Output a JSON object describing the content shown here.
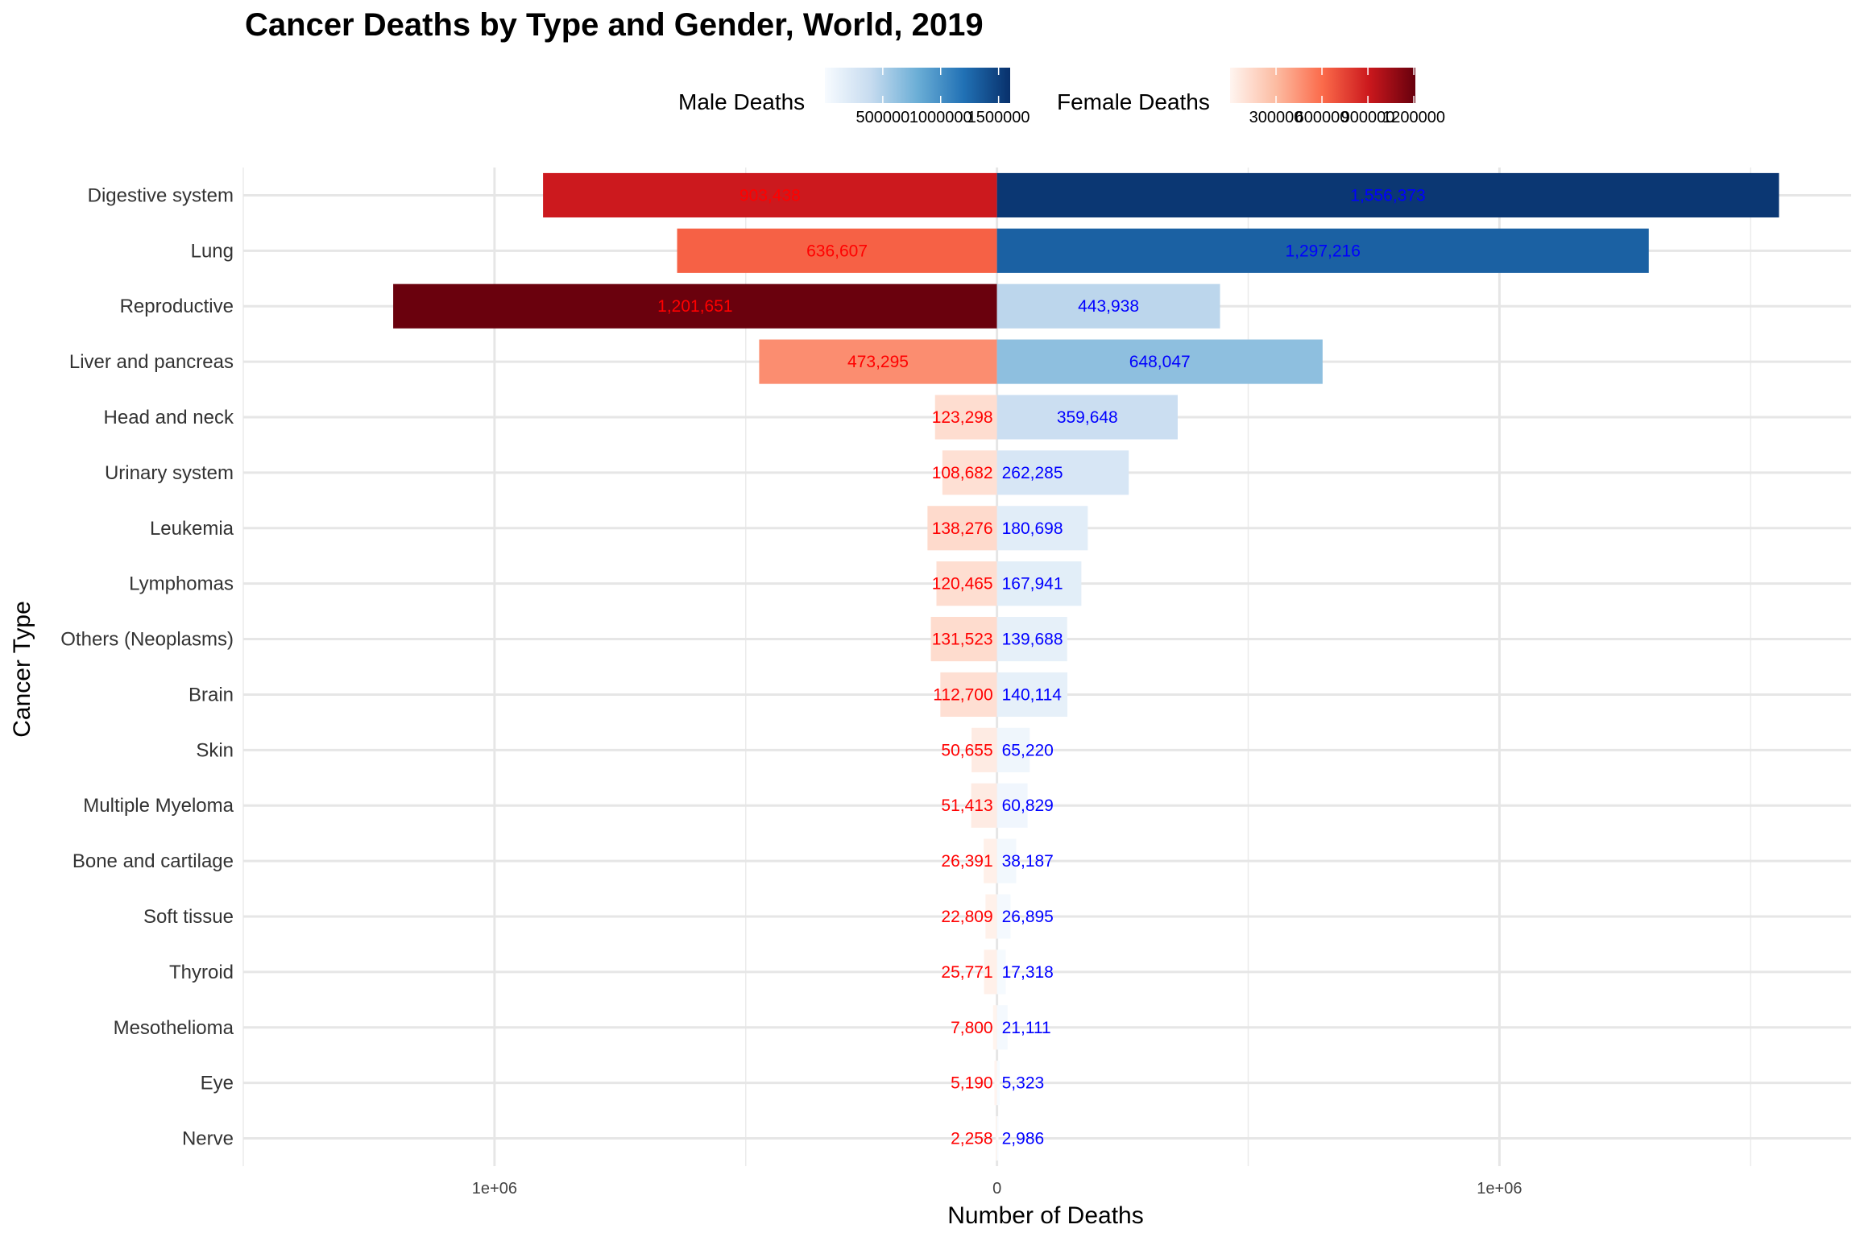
{
  "chart_data": {
    "type": "bar",
    "title": "Cancer Deaths by Type and Gender, World, 2019",
    "xlabel": "Number of Deaths",
    "ylabel": "Cancer Type",
    "xlim": [
      -1500000,
      1700000
    ],
    "x_ticks": [
      {
        "value": -1000000,
        "label": "1e+06"
      },
      {
        "value": 0,
        "label": "0"
      },
      {
        "value": 1000000,
        "label": "1e+06"
      }
    ],
    "categories": [
      "Digestive system",
      "Lung",
      "Reproductive",
      "Liver and pancreas",
      "Head and neck",
      "Urinary system",
      "Leukemia",
      "Lymphomas",
      "Others (Neoplasms)",
      "Brain",
      "Skin",
      "Multiple Myeloma",
      "Bone and cartilage",
      "Soft tissue",
      "Thyroid",
      "Mesothelioma",
      "Eye",
      "Nerve"
    ],
    "series": [
      {
        "name": "Female Deaths",
        "direction": "left",
        "label_color": "#ff0000",
        "values": [
          903438,
          636607,
          1201651,
          473295,
          123298,
          108682,
          138276,
          120465,
          131523,
          112700,
          50655,
          51413,
          26391,
          22809,
          25771,
          7800,
          5190,
          2258
        ],
        "labels": [
          "903,438",
          "636,607",
          "1,201,651",
          "473,295",
          "123,298",
          "108,682",
          "138,276",
          "120,465",
          "131,523",
          "112,700",
          "50,655",
          "51,413",
          "26,391",
          "22,809",
          "25,771",
          "7,800",
          "5,190",
          "2,258"
        ]
      },
      {
        "name": "Male Deaths",
        "direction": "right",
        "label_color": "#0000ff",
        "values": [
          1556373,
          1297216,
          443938,
          648047,
          359648,
          262285,
          180698,
          167941,
          139688,
          140114,
          65220,
          60829,
          38187,
          26895,
          17318,
          21111,
          5323,
          2986
        ],
        "labels": [
          "1,556,373",
          "1,297,216",
          "443,938",
          "648,047",
          "359,648",
          "262,285",
          "180,698",
          "167,941",
          "139,688",
          "140,114",
          "65,220",
          "60,829",
          "38,187",
          "26,895",
          "17,318",
          "21,111",
          "5,323",
          "2,986"
        ]
      }
    ],
    "legend": {
      "placement": "top",
      "male": {
        "title": "Male Deaths",
        "range": [
          0,
          1600000
        ],
        "colors": [
          "#f7fbff",
          "#c6dbef",
          "#6baed6",
          "#2171b5",
          "#08306b"
        ],
        "ticks": [
          {
            "value": 500000,
            "label": "500000"
          },
          {
            "value": 1000000,
            "label": "1000000"
          },
          {
            "value": 1500000,
            "label": "1500000"
          }
        ]
      },
      "female": {
        "title": "Female Deaths",
        "range": [
          0,
          1210000
        ],
        "colors": [
          "#fff5f0",
          "#fcbba1",
          "#fb6a4a",
          "#cb181d",
          "#67000d"
        ],
        "ticks": [
          {
            "value": 300000,
            "label": "300000"
          },
          {
            "value": 600000,
            "label": "600000"
          },
          {
            "value": 900000,
            "label": "900000"
          },
          {
            "value": 1200000,
            "label": "1200000"
          }
        ]
      }
    },
    "grid": true
  }
}
